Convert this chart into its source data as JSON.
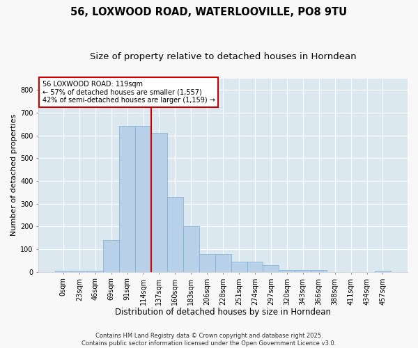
{
  "title": "56, LOXWOOD ROAD, WATERLOOVILLE, PO8 9TU",
  "subtitle": "Size of property relative to detached houses in Horndean",
  "xlabel": "Distribution of detached houses by size in Horndean",
  "ylabel": "Number of detached properties",
  "categories": [
    "0sqm",
    "23sqm",
    "46sqm",
    "69sqm",
    "91sqm",
    "114sqm",
    "137sqm",
    "160sqm",
    "183sqm",
    "206sqm",
    "228sqm",
    "251sqm",
    "274sqm",
    "297sqm",
    "320sqm",
    "343sqm",
    "366sqm",
    "388sqm",
    "411sqm",
    "434sqm",
    "457sqm"
  ],
  "values": [
    5,
    5,
    5,
    140,
    640,
    640,
    610,
    330,
    200,
    80,
    80,
    45,
    45,
    30,
    10,
    10,
    10,
    0,
    0,
    0,
    5
  ],
  "bar_color": "#b8d0e8",
  "bar_edge_color": "#7aafd4",
  "vline_index": 5,
  "vline_color": "#cc0000",
  "annotation_text": "56 LOXWOOD ROAD: 119sqm\n← 57% of detached houses are smaller (1,557)\n42% of semi-detached houses are larger (1,159) →",
  "annotation_box_color": "#ffffff",
  "annotation_box_edge_color": "#cc0000",
  "ylim": [
    0,
    850
  ],
  "yticks": [
    0,
    100,
    200,
    300,
    400,
    500,
    600,
    700,
    800
  ],
  "plot_bg_color": "#dce8f0",
  "fig_bg_color": "#f8f8f8",
  "grid_color": "#ffffff",
  "footer_text": "Contains HM Land Registry data © Crown copyright and database right 2025.\nContains public sector information licensed under the Open Government Licence v3.0.",
  "title_fontsize": 10.5,
  "subtitle_fontsize": 9.5,
  "xlabel_fontsize": 8.5,
  "ylabel_fontsize": 8,
  "tick_fontsize": 7,
  "annotation_fontsize": 7,
  "footer_fontsize": 6
}
